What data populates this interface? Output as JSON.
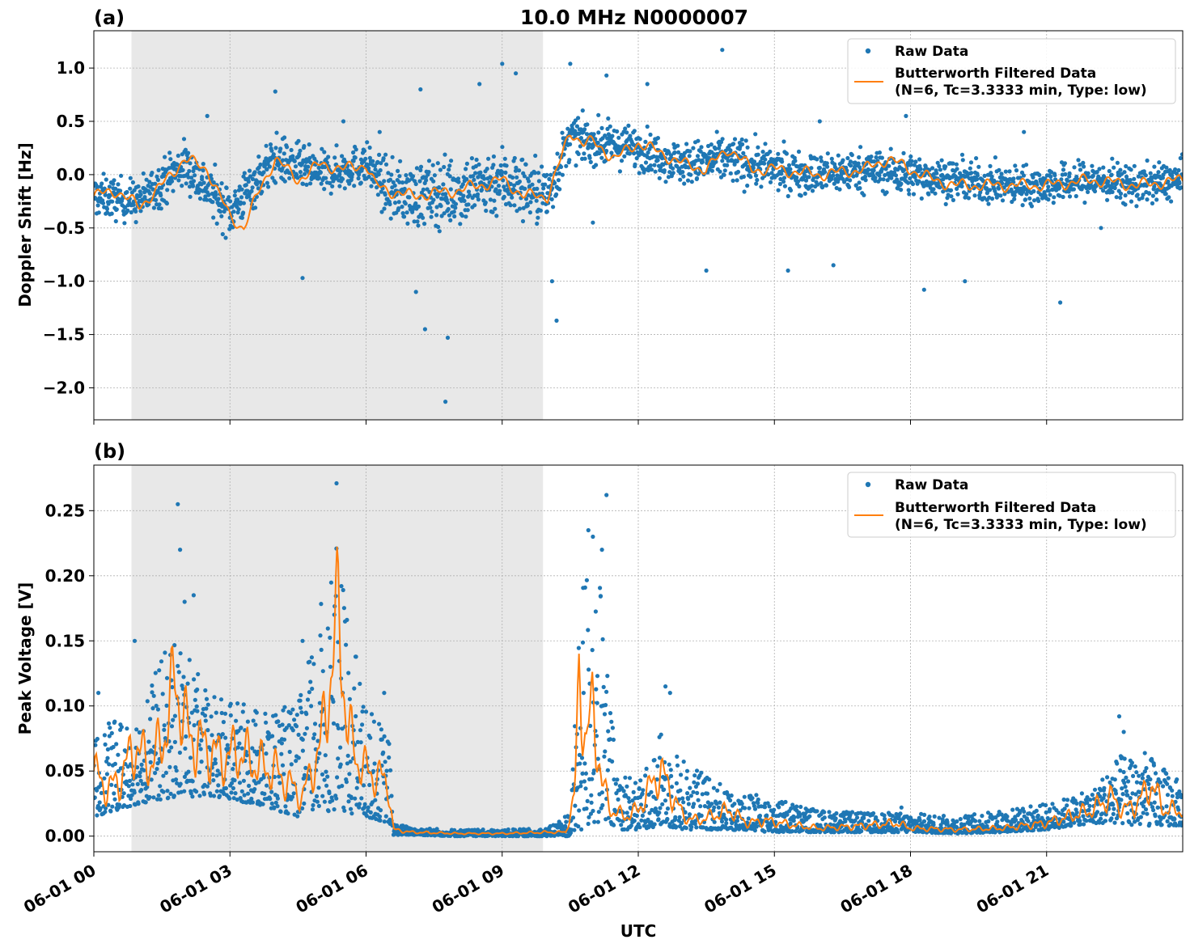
{
  "figure": {
    "title": "10.0 MHz N0000007",
    "xlabel": "UTC",
    "x_tick_labels": [
      "06-01 00",
      "06-01 03",
      "06-01 06",
      "06-01 09",
      "06-01 12",
      "06-01 15",
      "06-01 18",
      "06-01 21"
    ],
    "colors": {
      "raw": "#1f77b4",
      "filtered": "#ff7f0e",
      "shade": "#e8e8e8",
      "grid": "#b0b0b0"
    },
    "night_shading_hours": [
      0.83,
      9.9
    ]
  },
  "chart_data": [
    {
      "type": "scatter",
      "panel_label": "(a)",
      "title": "10.0 MHz N0000007",
      "xlabel": "",
      "ylabel": "Doppler Shift [Hz]",
      "xlim_hours": [
        0,
        24
      ],
      "ylim": [
        -2.3,
        1.35
      ],
      "yticks": [
        1.0,
        0.5,
        0.0,
        -0.5,
        -1.0,
        -1.5,
        -2.0
      ],
      "ytick_labels": [
        "1.0",
        "0.5",
        "0.0",
        "−0.5",
        "−1.0",
        "−1.5",
        "−2.0"
      ],
      "grid": true,
      "legend_position": "top-right",
      "legend": [
        "Raw Data",
        "Butterworth Filtered Data",
        "(N=6, Tc=3.3333 min, Type: low)"
      ],
      "series": [
        {
          "name": "Butterworth Filtered Data",
          "x_hours": [
            0,
            0.5,
            1,
            1.5,
            2,
            2.5,
            3,
            3.3,
            3.7,
            4,
            4.5,
            5,
            5.5,
            6,
            6.2,
            6.5,
            7,
            8,
            9,
            9.5,
            10,
            10.3,
            10.5,
            10.8,
            11,
            11.5,
            12,
            12.5,
            13,
            13.5,
            14,
            14.5,
            15,
            16,
            17,
            17.5,
            18,
            18.5,
            19,
            20,
            21,
            22,
            23,
            24
          ],
          "y": [
            -0.2,
            -0.15,
            -0.3,
            -0.1,
            0.15,
            0.05,
            -0.4,
            -0.5,
            -0.1,
            0.15,
            -0.05,
            0.1,
            0.05,
            0.1,
            -0.1,
            -0.15,
            -0.2,
            -0.15,
            -0.05,
            -0.2,
            -0.2,
            0.15,
            0.4,
            0.3,
            0.3,
            0.15,
            0.3,
            0.2,
            0.1,
            0.05,
            0.25,
            0.05,
            0.05,
            0.0,
            0.05,
            0.15,
            0.05,
            -0.05,
            -0.1,
            -0.1,
            -0.1,
            -0.05,
            -0.1,
            -0.05
          ]
        },
        {
          "name": "Raw Data",
          "band": {
            "x_hours": [
              0,
              1,
              2,
              3,
              4,
              5,
              6,
              6.5,
              7,
              8,
              9,
              10,
              10.5,
              11,
              12,
              13,
              14,
              15,
              16,
              17,
              18,
              19,
              20,
              21,
              22,
              23,
              24
            ],
            "center": [
              -0.2,
              -0.25,
              0.1,
              -0.35,
              0.15,
              0.0,
              0.1,
              -0.15,
              -0.2,
              -0.15,
              -0.05,
              -0.2,
              0.35,
              0.3,
              0.25,
              0.1,
              0.15,
              0.05,
              0.0,
              0.05,
              0.0,
              -0.05,
              -0.1,
              -0.1,
              -0.05,
              -0.1,
              -0.05
            ],
            "halfwidth": [
              0.3,
              0.3,
              0.35,
              0.35,
              0.35,
              0.3,
              0.3,
              0.4,
              0.45,
              0.5,
              0.5,
              0.45,
              0.3,
              0.3,
              0.3,
              0.3,
              0.35,
              0.3,
              0.3,
              0.3,
              0.3,
              0.28,
              0.28,
              0.28,
              0.28,
              0.28,
              0.28
            ]
          },
          "outliers": [
            [
              7.75,
              -2.13
            ],
            [
              13.85,
              1.17
            ],
            [
              9.0,
              1.04
            ],
            [
              10.5,
              1.04
            ],
            [
              7.8,
              -1.53
            ],
            [
              7.3,
              -1.45
            ],
            [
              11.3,
              0.93
            ],
            [
              12.2,
              0.85
            ],
            [
              7.1,
              -1.1
            ],
            [
              11.0,
              -0.45
            ],
            [
              21.3,
              -1.2
            ],
            [
              18.3,
              -1.08
            ],
            [
              10.2,
              -1.37
            ],
            [
              10.1,
              -1.0
            ],
            [
              4.6,
              -0.97
            ],
            [
              13.5,
              -0.9
            ],
            [
              15.3,
              -0.9
            ],
            [
              16.3,
              -0.85
            ],
            [
              19.2,
              -1.0
            ],
            [
              22.2,
              -0.5
            ],
            [
              8.5,
              0.85
            ],
            [
              9.3,
              0.95
            ],
            [
              7.2,
              0.8
            ],
            [
              6.3,
              0.4
            ],
            [
              4.0,
              0.78
            ],
            [
              2.5,
              0.55
            ],
            [
              5.5,
              0.5
            ],
            [
              16.0,
              0.5
            ],
            [
              17.9,
              0.55
            ],
            [
              20.5,
              0.4
            ]
          ]
        }
      ]
    },
    {
      "type": "scatter",
      "panel_label": "(b)",
      "title": "",
      "xlabel": "UTC",
      "ylabel": "Peak Voltage [V]",
      "xlim_hours": [
        0,
        24
      ],
      "ylim": [
        -0.012,
        0.285
      ],
      "yticks": [
        0.25,
        0.2,
        0.15,
        0.1,
        0.05,
        0.0
      ],
      "ytick_labels": [
        "0.25",
        "0.20",
        "0.15",
        "0.10",
        "0.05",
        "0.00"
      ],
      "grid": true,
      "legend_position": "top-right",
      "legend": [
        "Raw Data",
        "Butterworth Filtered Data",
        "(N=6, Tc=3.3333 min, Type: low)"
      ],
      "series": [
        {
          "name": "Butterworth Filtered Data",
          "x_hours": [
            0,
            0.3,
            0.6,
            0.9,
            1.2,
            1.5,
            1.8,
            2.1,
            2.4,
            2.8,
            3.2,
            3.6,
            4.0,
            4.3,
            4.6,
            4.8,
            5.0,
            5.2,
            5.4,
            5.6,
            5.8,
            6.0,
            6.3,
            6.5,
            6.6,
            7,
            8,
            9,
            10,
            10.4,
            10.6,
            10.7,
            10.85,
            11.0,
            11.2,
            11.4,
            11.7,
            12.0,
            12.3,
            12.5,
            12.7,
            13.0,
            13.3,
            13.6,
            14.0,
            14.4,
            14.8,
            15.5,
            16,
            17,
            17.7,
            18,
            19,
            20,
            21,
            21.5,
            22,
            22.4,
            22.7,
            23,
            23.3,
            23.6,
            24
          ],
          "y": [
            0.05,
            0.035,
            0.045,
            0.07,
            0.055,
            0.07,
            0.12,
            0.075,
            0.07,
            0.06,
            0.065,
            0.055,
            0.05,
            0.04,
            0.03,
            0.05,
            0.07,
            0.12,
            0.17,
            0.08,
            0.06,
            0.05,
            0.045,
            0.04,
            0.005,
            0.003,
            0.002,
            0.002,
            0.003,
            0.003,
            0.03,
            0.13,
            0.07,
            0.1,
            0.04,
            0.02,
            0.015,
            0.02,
            0.04,
            0.05,
            0.035,
            0.015,
            0.012,
            0.015,
            0.02,
            0.01,
            0.012,
            0.008,
            0.006,
            0.008,
            0.01,
            0.006,
            0.005,
            0.006,
            0.01,
            0.015,
            0.02,
            0.03,
            0.02,
            0.025,
            0.04,
            0.02,
            0.02
          ]
        },
        {
          "name": "Raw Data",
          "band": {
            "x_hours": [
              0,
              1,
              1.8,
              2.5,
              3.5,
              4.5,
              5.3,
              6.0,
              6.5,
              6.6,
              7,
              8,
              9,
              10,
              10.5,
              10.8,
              11.1,
              11.5,
              12,
              12.5,
              13,
              14,
              15,
              16,
              17,
              18,
              19,
              20,
              21,
              22,
              22.5,
              23,
              24
            ],
            "low": [
              0.015,
              0.025,
              0.03,
              0.03,
              0.025,
              0.015,
              0.02,
              0.015,
              0.01,
              0.001,
              0.001,
              0.0,
              0.0,
              0.0,
              0.0,
              0.005,
              0.01,
              0.005,
              0.005,
              0.008,
              0.005,
              0.005,
              0.003,
              0.003,
              0.003,
              0.003,
              0.002,
              0.003,
              0.005,
              0.01,
              0.01,
              0.008,
              0.008
            ],
            "high": [
              0.08,
              0.1,
              0.16,
              0.11,
              0.1,
              0.1,
              0.23,
              0.1,
              0.08,
              0.01,
              0.007,
              0.005,
              0.005,
              0.006,
              0.02,
              0.22,
              0.22,
              0.06,
              0.04,
              0.08,
              0.06,
              0.035,
              0.03,
              0.02,
              0.018,
              0.018,
              0.015,
              0.02,
              0.025,
              0.035,
              0.06,
              0.07,
              0.04
            ]
          },
          "outliers": [
            [
              1.85,
              0.255
            ],
            [
              5.35,
              0.271
            ],
            [
              11.3,
              0.262
            ],
            [
              10.9,
              0.235
            ],
            [
              1.9,
              0.22
            ],
            [
              2.2,
              0.185
            ],
            [
              4.6,
              0.15
            ],
            [
              6.4,
              0.11
            ],
            [
              12.7,
              0.11
            ],
            [
              12.6,
              0.115
            ],
            [
              0.1,
              0.11
            ],
            [
              22.6,
              0.092
            ],
            [
              22.7,
              0.08
            ],
            [
              11.2,
              0.22
            ],
            [
              11.0,
              0.23
            ],
            [
              0.9,
              0.15
            ],
            [
              2.0,
              0.18
            ],
            [
              3.0,
              0.1
            ],
            [
              13.8,
              0.04
            ],
            [
              17.8,
              0.022
            ]
          ]
        }
      ]
    }
  ]
}
